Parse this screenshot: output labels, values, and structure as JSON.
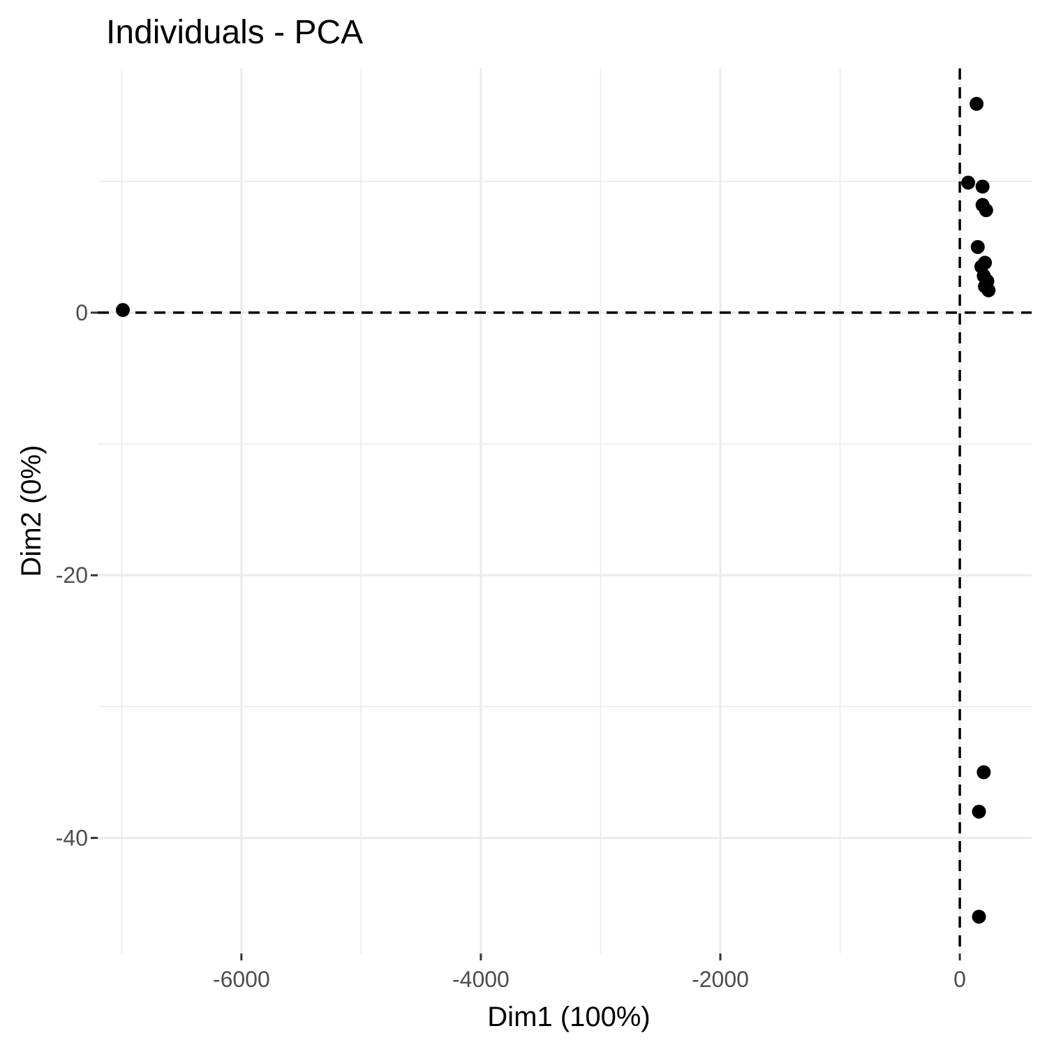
{
  "chart_data": {
    "type": "scatter",
    "title": "Individuals - PCA",
    "xlabel": "Dim1 (100%)",
    "ylabel": "Dim2 (0%)",
    "xlim": [
      -7200,
      600
    ],
    "ylim": [
      -48.8,
      18.6
    ],
    "x_ticks": [
      -6000,
      -4000,
      -2000,
      0
    ],
    "x_tick_labels": [
      "-6000",
      "-4000",
      "-2000",
      "0"
    ],
    "y_ticks": [
      -40,
      -20,
      0
    ],
    "y_tick_labels": [
      "-40",
      "-20",
      "0"
    ],
    "grid": true,
    "reference_lines": {
      "x": 0,
      "y": 0,
      "style": "dashed"
    },
    "points": [
      {
        "x": -6990,
        "y": 0.2
      },
      {
        "x": 140,
        "y": 15.9
      },
      {
        "x": 70,
        "y": 9.9
      },
      {
        "x": 190,
        "y": 9.6
      },
      {
        "x": 190,
        "y": 8.2
      },
      {
        "x": 220,
        "y": 7.8
      },
      {
        "x": 150,
        "y": 5.0
      },
      {
        "x": 210,
        "y": 3.8
      },
      {
        "x": 180,
        "y": 3.5
      },
      {
        "x": 200,
        "y": 2.8
      },
      {
        "x": 230,
        "y": 2.4
      },
      {
        "x": 210,
        "y": 2.0
      },
      {
        "x": 240,
        "y": 1.7
      },
      {
        "x": 200,
        "y": -35.0
      },
      {
        "x": 160,
        "y": -38.0
      },
      {
        "x": 160,
        "y": -46.0
      }
    ],
    "point_color": "#000000"
  }
}
